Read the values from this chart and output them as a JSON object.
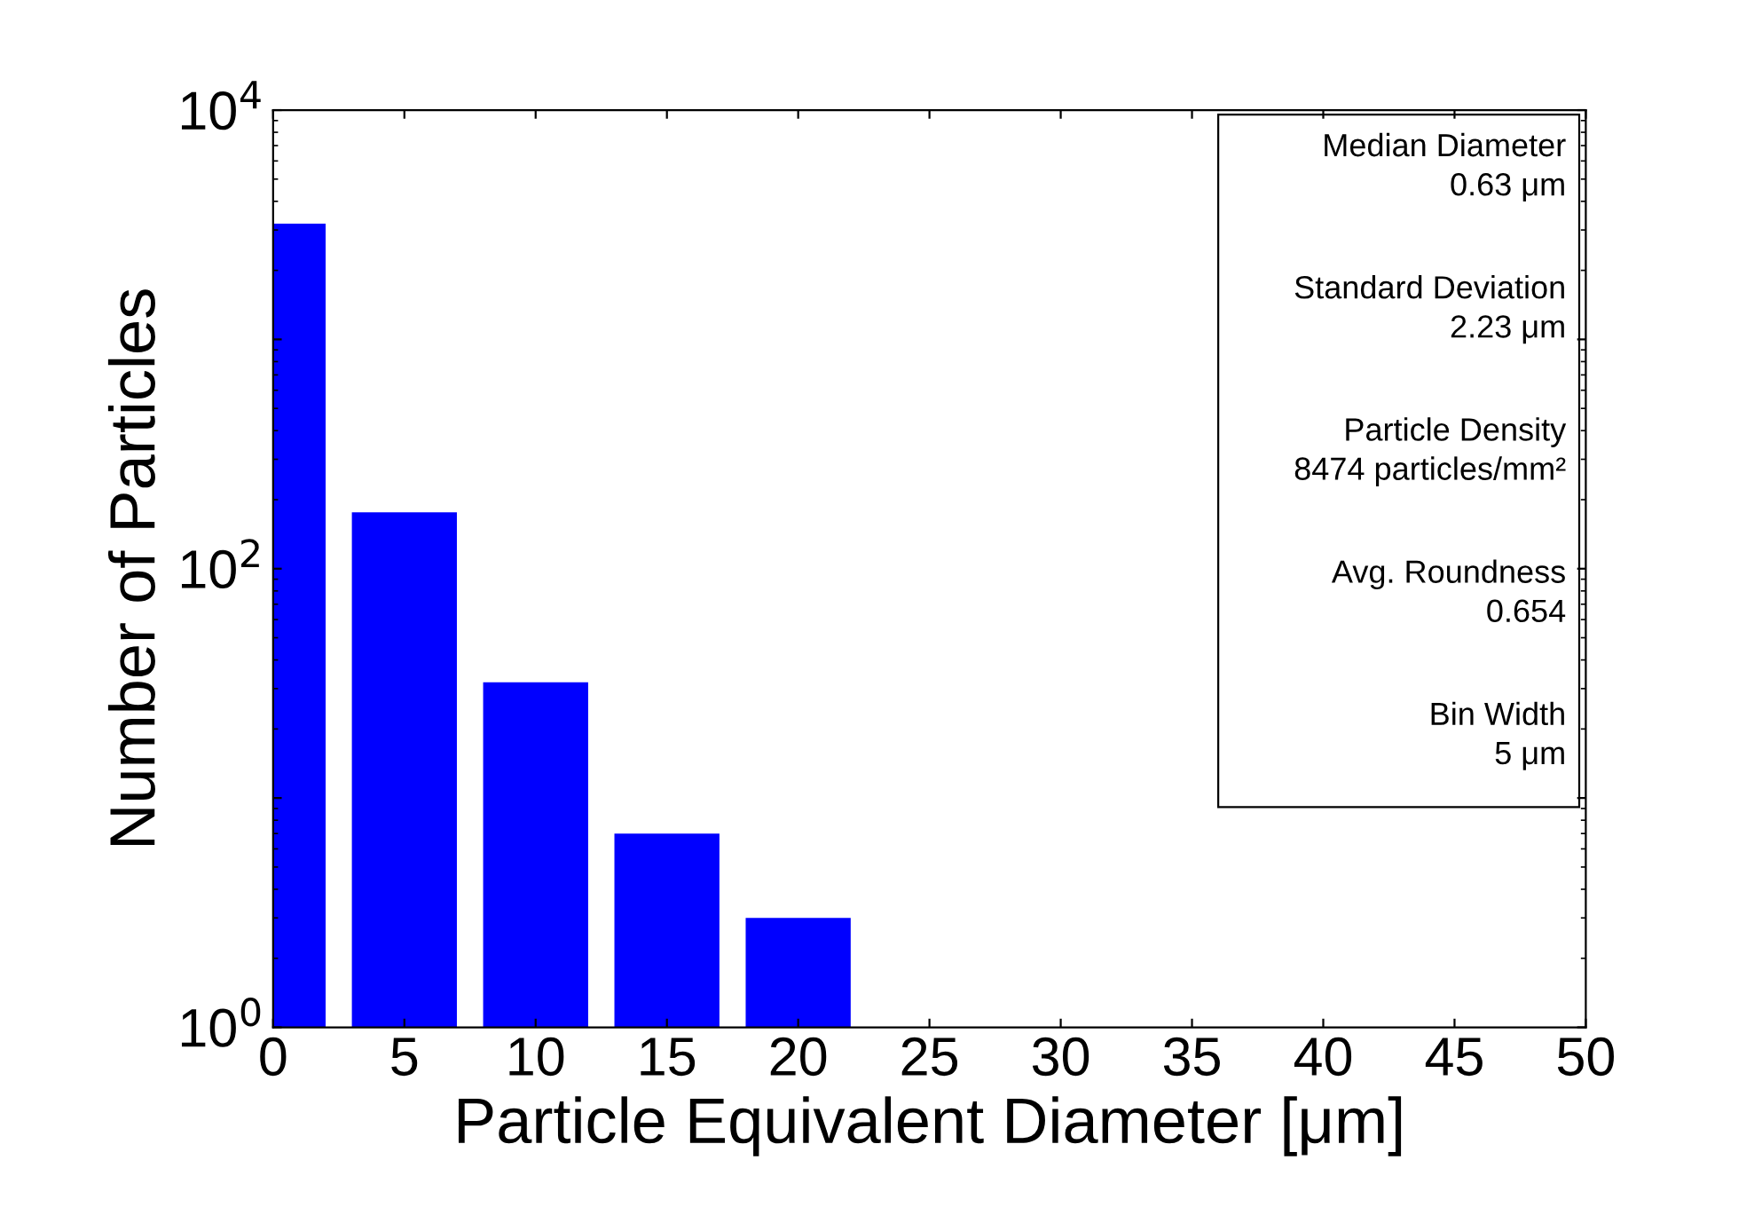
{
  "chart_data": {
    "type": "bar",
    "xlabel": "Particle Equivalent Diameter [μm]",
    "ylabel": "Number of Particles",
    "x": [
      0,
      5,
      10,
      15,
      20
    ],
    "values": [
      3200,
      176,
      32,
      7,
      3
    ],
    "color": "#0000ff",
    "log": "y",
    "xlim": [
      0,
      50
    ],
    "xticks": [
      0,
      5,
      10,
      15,
      20,
      25,
      30,
      35,
      40,
      45,
      50
    ],
    "ylim": [
      1,
      10000
    ],
    "yticks": [
      {
        "value": 1,
        "label": "10$^{0}$"
      },
      {
        "value": 10,
        "label": null
      },
      {
        "value": 100,
        "label": "10$^{2}$"
      },
      {
        "value": 1000,
        "label": null
      },
      {
        "value": 10000,
        "label": "10$^{4}$"
      }
    ],
    "grid": false,
    "annotations": [
      "Median Diameter\n0.63 μm",
      "Standard Deviation\n2.23 μm",
      "Particle Density\n8474 particles/mm²",
      "Avg. Roundness\n0.654",
      "Bin Width\n5 μm"
    ]
  }
}
